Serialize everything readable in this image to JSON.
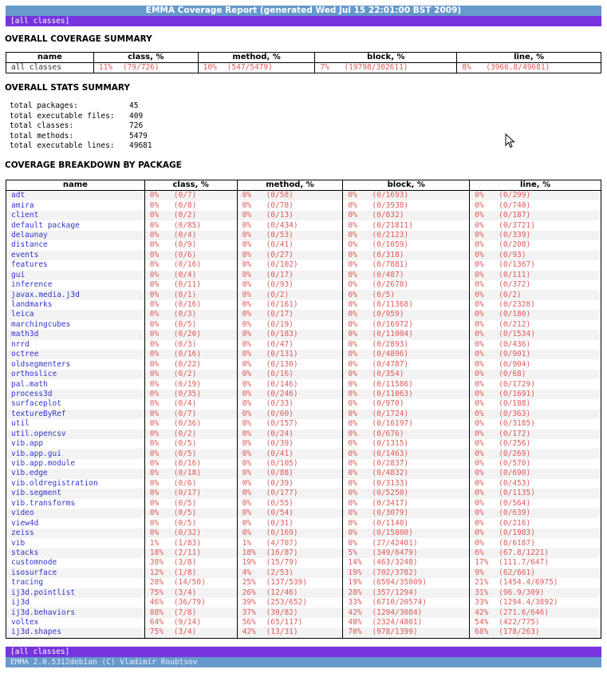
{
  "header": {
    "title": "EMMA Coverage Report (generated Wed Jul 15 22:01:00 BST 2009)",
    "all_classes_link": "[all classes]"
  },
  "overall_summary": {
    "heading": "OVERALL COVERAGE SUMMARY",
    "columns": [
      "name",
      "class, %",
      "method, %",
      "block, %",
      "line, %"
    ],
    "row": {
      "name": "all classes",
      "class_pct": "11%",
      "class_frac": "(79/726)",
      "method_pct": "10%",
      "method_frac": "(547/5479)",
      "block_pct": "7%",
      "block_frac": "(19798/302611)",
      "line_pct": "8%",
      "line_frac": "(3966.8/49681)"
    }
  },
  "stats_summary": {
    "heading": "OVERALL STATS SUMMARY",
    "items": [
      {
        "label": "total packages:",
        "value": "45"
      },
      {
        "label": "total executable files:",
        "value": "409"
      },
      {
        "label": "total classes:",
        "value": "726"
      },
      {
        "label": "total methods:",
        "value": "5479"
      },
      {
        "label": "total executable lines:",
        "value": "49681"
      }
    ]
  },
  "breakdown": {
    "heading": "COVERAGE BREAKDOWN BY PACKAGE",
    "columns": [
      "name",
      "class, %",
      "method, %",
      "block, %",
      "line, %"
    ],
    "rows": [
      [
        "adt",
        "0%",
        "(0/7)",
        "0%",
        "(0/58)",
        "0%",
        "(0/1693)",
        "0%",
        "(0/299)"
      ],
      [
        "amira",
        "0%",
        "(0/8)",
        "0%",
        "(0/78)",
        "0%",
        "(0/3938)",
        "0%",
        "(0/740)"
      ],
      [
        "client",
        "0%",
        "(0/2)",
        "0%",
        "(0/13)",
        "0%",
        "(0/832)",
        "0%",
        "(0/187)"
      ],
      [
        "default package",
        "0%",
        "(0/85)",
        "0%",
        "(0/434)",
        "0%",
        "(0/21811)",
        "0%",
        "(0/3721)"
      ],
      [
        "delaunay",
        "0%",
        "(0/4)",
        "0%",
        "(0/53)",
        "0%",
        "(0/2123)",
        "0%",
        "(0/339)"
      ],
      [
        "distance",
        "0%",
        "(0/9)",
        "0%",
        "(0/41)",
        "0%",
        "(0/1059)",
        "0%",
        "(0/208)"
      ],
      [
        "events",
        "0%",
        "(0/6)",
        "0%",
        "(0/27)",
        "0%",
        "(0/318)",
        "0%",
        "(0/93)"
      ],
      [
        "features",
        "0%",
        "(0/16)",
        "0%",
        "(0/102)",
        "0%",
        "(0/7881)",
        "0%",
        "(0/1367)"
      ],
      [
        "gui",
        "0%",
        "(0/4)",
        "0%",
        "(0/17)",
        "0%",
        "(0/487)",
        "0%",
        "(0/111)"
      ],
      [
        "inference",
        "0%",
        "(0/11)",
        "0%",
        "(0/93)",
        "0%",
        "(0/2678)",
        "0%",
        "(0/372)"
      ],
      [
        "javax.media.j3d",
        "0%",
        "(0/1)",
        "0%",
        "(0/2)",
        "0%",
        "(0/5)",
        "0%",
        "(0/2)"
      ],
      [
        "landmarks",
        "0%",
        "(0/16)",
        "0%",
        "(0/161)",
        "0%",
        "(0/11368)",
        "0%",
        "(0/2328)"
      ],
      [
        "leica",
        "0%",
        "(0/3)",
        "0%",
        "(0/17)",
        "0%",
        "(0/959)",
        "0%",
        "(0/180)"
      ],
      [
        "marchingcubes",
        "0%",
        "(0/5)",
        "0%",
        "(0/19)",
        "0%",
        "(0/16972)",
        "0%",
        "(0/212)"
      ],
      [
        "math3d",
        "0%",
        "(0/20)",
        "0%",
        "(0/183)",
        "0%",
        "(0/11004)",
        "0%",
        "(0/1534)"
      ],
      [
        "nrrd",
        "0%",
        "(0/3)",
        "0%",
        "(0/47)",
        "0%",
        "(0/2893)",
        "0%",
        "(0/436)"
      ],
      [
        "octree",
        "0%",
        "(0/16)",
        "0%",
        "(0/131)",
        "0%",
        "(0/4896)",
        "0%",
        "(0/901)"
      ],
      [
        "oldsegmenters",
        "0%",
        "(0/22)",
        "0%",
        "(0/130)",
        "0%",
        "(0/4787)",
        "0%",
        "(0/904)"
      ],
      [
        "orthoslice",
        "0%",
        "(0/2)",
        "0%",
        "(0/16)",
        "0%",
        "(0/354)",
        "0%",
        "(0/68)"
      ],
      [
        "pal.math",
        "0%",
        "(0/19)",
        "0%",
        "(0/146)",
        "0%",
        "(0/11586)",
        "0%",
        "(0/1729)"
      ],
      [
        "process3d",
        "0%",
        "(0/35)",
        "0%",
        "(0/246)",
        "0%",
        "(0/11063)",
        "0%",
        "(0/1691)"
      ],
      [
        "surfaceplot",
        "0%",
        "(0/4)",
        "0%",
        "(0/33)",
        "0%",
        "(0/970)",
        "0%",
        "(0/188)"
      ],
      [
        "textureByRef",
        "0%",
        "(0/7)",
        "0%",
        "(0/60)",
        "0%",
        "(0/1724)",
        "0%",
        "(0/363)"
      ],
      [
        "util",
        "0%",
        "(0/36)",
        "0%",
        "(0/157)",
        "0%",
        "(0/16197)",
        "0%",
        "(0/3185)"
      ],
      [
        "util.opencsv",
        "0%",
        "(0/2)",
        "0%",
        "(0/24)",
        "0%",
        "(0/676)",
        "0%",
        "(0/172)"
      ],
      [
        "vib.app",
        "0%",
        "(0/5)",
        "0%",
        "(0/39)",
        "0%",
        "(0/1315)",
        "0%",
        "(0/256)"
      ],
      [
        "vib.app.gui",
        "0%",
        "(0/5)",
        "0%",
        "(0/41)",
        "0%",
        "(0/1463)",
        "0%",
        "(0/269)"
      ],
      [
        "vib.app.module",
        "0%",
        "(0/16)",
        "0%",
        "(0/105)",
        "0%",
        "(0/2837)",
        "0%",
        "(0/570)"
      ],
      [
        "vib.edge",
        "0%",
        "(0/18)",
        "0%",
        "(0/88)",
        "0%",
        "(0/4832)",
        "0%",
        "(0/690)"
      ],
      [
        "vib.oldregistration",
        "0%",
        "(0/6)",
        "0%",
        "(0/39)",
        "0%",
        "(0/3133)",
        "0%",
        "(0/453)"
      ],
      [
        "vib.segment",
        "0%",
        "(0/17)",
        "0%",
        "(0/177)",
        "0%",
        "(0/5250)",
        "0%",
        "(0/1135)"
      ],
      [
        "vib.transforms",
        "0%",
        "(0/5)",
        "0%",
        "(0/55)",
        "0%",
        "(0/3417)",
        "0%",
        "(0/564)"
      ],
      [
        "video",
        "0%",
        "(0/5)",
        "0%",
        "(0/54)",
        "0%",
        "(0/3079)",
        "0%",
        "(0/639)"
      ],
      [
        "view4d",
        "0%",
        "(0/5)",
        "0%",
        "(0/31)",
        "0%",
        "(0/1140)",
        "0%",
        "(0/216)"
      ],
      [
        "zeiss",
        "0%",
        "(0/32)",
        "0%",
        "(0/169)",
        "0%",
        "(0/15800)",
        "0%",
        "(0/1983)"
      ],
      [
        "vib",
        "1%",
        "(1/83)",
        "1%",
        "(4/707)",
        "0%",
        "(27/42401)",
        "0%",
        "(8/6187)"
      ],
      [
        "stacks",
        "18%",
        "(2/11)",
        "18%",
        "(16/87)",
        "5%",
        "(349/6479)",
        "6%",
        "(67.8/1221)"
      ],
      [
        "customnode",
        "38%",
        "(3/8)",
        "19%",
        "(15/79)",
        "14%",
        "(463/3248)",
        "17%",
        "(111.7/647)"
      ],
      [
        "isosurface",
        "12%",
        "(1/8)",
        "4%",
        "(2/53)",
        "19%",
        "(702/3782)",
        "9%",
        "(62/661)"
      ],
      [
        "tracing",
        "28%",
        "(14/50)",
        "25%",
        "(137/539)",
        "19%",
        "(6594/35009)",
        "21%",
        "(1454.4/6975)"
      ],
      [
        "ij3d.pointlist",
        "75%",
        "(3/4)",
        "26%",
        "(12/46)",
        "28%",
        "(357/1294)",
        "31%",
        "(96.9/309)"
      ],
      [
        "ij3d",
        "46%",
        "(36/79)",
        "39%",
        "(253/652)",
        "33%",
        "(6710/20574)",
        "33%",
        "(1294.4/3892)"
      ],
      [
        "ij3d.behaviors",
        "88%",
        "(7/8)",
        "37%",
        "(30/82)",
        "42%",
        "(1294/3084)",
        "42%",
        "(271.6/646)"
      ],
      [
        "voltex",
        "64%",
        "(9/14)",
        "56%",
        "(65/117)",
        "48%",
        "(2324/4801)",
        "54%",
        "(422/775)"
      ],
      [
        "ij3d.shapes",
        "75%",
        "(3/4)",
        "42%",
        "(13/31)",
        "70%",
        "(978/1399)",
        "68%",
        "(178/263)"
      ]
    ]
  },
  "footer": {
    "all_classes_link": "[all classes]",
    "copyright": "EMMA 2.0.5312debian (C) Vladimir Roubtsov"
  }
}
